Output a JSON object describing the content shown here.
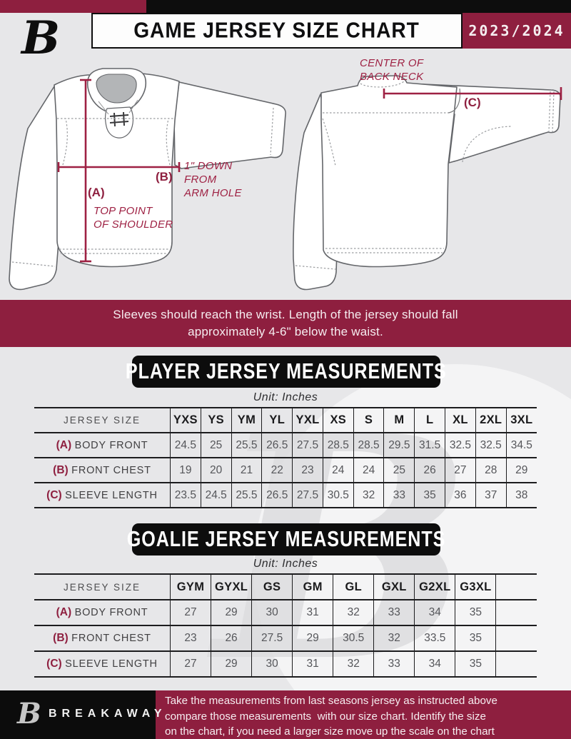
{
  "colors": {
    "maroon": "#8E1F3F",
    "black": "#0D0D0D",
    "annotation": "#9E2143"
  },
  "header": {
    "title": "GAME JERSEY SIZE CHART",
    "season": "2023/2024",
    "logo_letter": "B"
  },
  "diagram": {
    "note_a_label": "(A)",
    "note_a_lines": [
      "TOP POINT",
      "OF SHOULDER"
    ],
    "note_b_label": "(B)",
    "note_b_lines": [
      "1\" DOWN",
      "FROM",
      "ARM HOLE"
    ],
    "note_c_label": "(C)",
    "note_c_lines": [
      "CENTER OF",
      "BACK NECK"
    ]
  },
  "notice_lines": [
    "Sleeves should reach the wrist. Length of the jersey should fall",
    "approximately 4-6\" below the waist."
  ],
  "player_table": {
    "heading": "PLAYER JERSEY MEASUREMENTS",
    "unit": "Unit: Inches",
    "size_label": "JERSEY SIZE",
    "columns": [
      "YXS",
      "YS",
      "YM",
      "YL",
      "YXL",
      "XS",
      "S",
      "M",
      "L",
      "XL",
      "2XL",
      "3XL"
    ],
    "rows": [
      {
        "key": "(A)",
        "label": "BODY FRONT",
        "values": [
          "24.5",
          "25",
          "25.5",
          "26.5",
          "27.5",
          "28.5",
          "28.5",
          "29.5",
          "31.5",
          "32.5",
          "32.5",
          "34.5"
        ]
      },
      {
        "key": "(B)",
        "label": "FRONT CHEST",
        "values": [
          "19",
          "20",
          "21",
          "22",
          "23",
          "24",
          "24",
          "25",
          "26",
          "27",
          "28",
          "29"
        ]
      },
      {
        "key": "(C)",
        "label": "SLEEVE LENGTH",
        "values": [
          "23.5",
          "24.5",
          "25.5",
          "26.5",
          "27.5",
          "30.5",
          "32",
          "33",
          "35",
          "36",
          "37",
          "38"
        ]
      }
    ]
  },
  "goalie_table": {
    "heading": "GOALIE JERSEY MEASUREMENTS",
    "unit": "Unit: Inches",
    "size_label": "JERSEY SIZE",
    "columns": [
      "GYM",
      "GYXL",
      "GS",
      "GM",
      "GL",
      "GXL",
      "G2XL",
      "G3XL",
      ""
    ],
    "rows": [
      {
        "key": "(A)",
        "label": "BODY FRONT",
        "values": [
          "27",
          "29",
          "30",
          "31",
          "32",
          "33",
          "34",
          "35",
          ""
        ]
      },
      {
        "key": "(B)",
        "label": "FRONT CHEST",
        "values": [
          "23",
          "26",
          "27.5",
          "29",
          "30.5",
          "32",
          "33.5",
          "35",
          ""
        ]
      },
      {
        "key": "(C)",
        "label": "SLEEVE LENGTH",
        "values": [
          "27",
          "29",
          "30",
          "31",
          "32",
          "33",
          "34",
          "35",
          ""
        ]
      }
    ]
  },
  "footer": {
    "logo_letter": "B",
    "brand": "BREAKAWAY",
    "note_lines": [
      "Take the measurements from last seasons jersey as instructed above",
      "compare those measurements  with our size chart. Identify the size",
      "on the chart, if you need a larger size move up the scale on the chart"
    ]
  }
}
